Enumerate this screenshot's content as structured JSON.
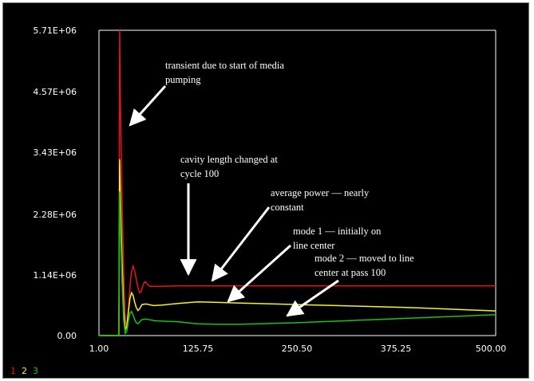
{
  "chart_data": {
    "type": "line",
    "xlim": [
      1.0,
      500.0
    ],
    "ylim": [
      0,
      5710000
    ],
    "x_tick_labels": [
      "1.00",
      "125.75",
      "250.50",
      "375.25",
      "500.00"
    ],
    "y_tick_labels": [
      "0.00",
      "1.14E+06",
      "2.28E+06",
      "3.43E+06",
      "4.57E+06",
      "5.71E+06"
    ],
    "grid": false,
    "legend_labels": [
      "1",
      "2",
      "3"
    ],
    "series": [
      {
        "color": "#e8121b",
        "x": [
          1,
          26,
          27,
          28,
          30,
          32,
          34,
          36,
          38,
          40,
          42,
          44,
          46,
          48,
          50,
          52,
          54,
          56,
          58,
          60,
          62,
          65,
          70,
          80,
          100,
          150,
          200,
          250,
          300,
          350,
          400,
          450,
          500
        ],
        "y": [
          0,
          0,
          5710000,
          4300000,
          2600000,
          1200000,
          300000,
          150000,
          500000,
          900000,
          1200000,
          1300000,
          1200000,
          1050000,
          900000,
          800000,
          820000,
          920000,
          1000000,
          1000000,
          960000,
          920000,
          920000,
          920000,
          930000,
          930000,
          930000,
          930000,
          930000,
          930000,
          930000,
          930000,
          930000
        ]
      },
      {
        "color": "#f5f516",
        "x": [
          1,
          26,
          27,
          28,
          30,
          32,
          34,
          36,
          38,
          40,
          42,
          44,
          46,
          48,
          50,
          52,
          55,
          60,
          70,
          80,
          100,
          125,
          150,
          175,
          200,
          250,
          300,
          350,
          400,
          450,
          500
        ],
        "y": [
          0,
          0,
          3300000,
          2600000,
          1400000,
          500000,
          100000,
          180000,
          450000,
          690000,
          800000,
          750000,
          620000,
          520000,
          470000,
          500000,
          580000,
          590000,
          560000,
          570000,
          600000,
          630000,
          620000,
          610000,
          600000,
          580000,
          560000,
          540000,
          520000,
          490000,
          460000
        ]
      },
      {
        "color": "#16c418",
        "x": [
          1,
          26,
          27,
          28,
          30,
          32,
          34,
          36,
          38,
          40,
          42,
          44,
          46,
          48,
          50,
          52,
          55,
          60,
          70,
          80,
          100,
          125,
          150,
          175,
          200,
          250,
          300,
          350,
          400,
          450,
          500
        ],
        "y": [
          0,
          0,
          2700000,
          2100000,
          1000000,
          300000,
          40000,
          80000,
          280000,
          420000,
          450000,
          380000,
          300000,
          240000,
          220000,
          250000,
          300000,
          310000,
          280000,
          270000,
          260000,
          220000,
          210000,
          210000,
          220000,
          240000,
          270000,
          300000,
          330000,
          360000,
          390000
        ]
      }
    ],
    "annotations": [
      {
        "lines": [
          "transient due to start of media",
          "pumping"
        ]
      },
      {
        "lines": [
          "cavity length changed at",
          "cycle 100"
        ]
      },
      {
        "lines": [
          "average power —  nearly",
          "constant"
        ]
      },
      {
        "lines": [
          "mode 1 —  initially on",
          "line center"
        ]
      },
      {
        "lines": [
          "mode 2 —  moved to line",
          "center at pass 100"
        ]
      }
    ]
  }
}
